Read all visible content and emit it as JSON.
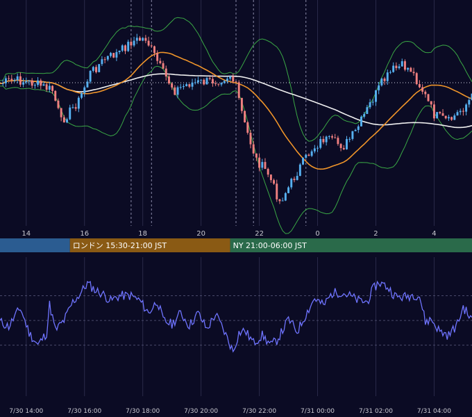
{
  "chart_data": [
    {
      "type": "candlestick",
      "x_ticks": [
        "14",
        "16",
        "18",
        "20",
        "22",
        "0",
        "2",
        "4"
      ],
      "x_tick_hours": [
        14,
        16,
        18,
        20,
        22,
        24,
        26,
        28
      ],
      "x_range_hours": [
        13.1,
        29.3
      ],
      "ohlc_hours_step": 0.1,
      "overlays": [
        "bollinger-bands",
        "moving-average-orange",
        "moving-average-white",
        "reference-dotted-line"
      ],
      "vertical_markers_hours": [
        17.6,
        18.3,
        21.2,
        21.8,
        23.6
      ],
      "colors": {
        "up": "#56b0f0",
        "down": "#f08080",
        "bands": "#3aa845",
        "ma_fast": "#f0952a",
        "ma_slow": "#f0f0f0",
        "grid": "#2a2a4a"
      }
    },
    {
      "type": "session-bar",
      "sessions": [
        {
          "label": "",
          "color": "#2b5c91",
          "start_hour": 13.1,
          "end_hour": 15.5
        },
        {
          "label": "ロンドン 15:30-21:00 JST",
          "color": "#8a5a14",
          "start_hour": 15.5,
          "end_hour": 21.0
        },
        {
          "label": "NY 21:00-06:00 JST",
          "color": "#2a6a4a",
          "start_hour": 21.0,
          "end_hour": 29.3
        }
      ]
    },
    {
      "type": "line",
      "series": [
        {
          "color": "#6f74ff",
          "anchors_x": [
            13.1,
            13.4,
            13.6,
            13.8,
            14.1,
            14.4,
            14.7,
            14.8,
            15.0,
            15.3,
            15.6,
            15.8,
            16.1,
            16.4,
            16.6,
            16.9,
            17.2,
            17.6,
            17.9,
            18.2,
            18.5,
            18.7,
            19.0,
            19.3,
            19.6,
            19.9,
            20.2,
            20.5,
            20.8,
            21.1,
            21.3,
            21.5,
            21.8,
            22.1,
            22.4,
            22.6,
            22.8,
            23.0,
            23.3,
            23.6,
            23.9,
            24.2,
            24.5,
            24.8,
            25.1,
            25.4,
            25.7,
            25.9,
            26.1,
            26.4,
            26.7,
            27.0,
            27.3,
            27.5,
            27.7,
            27.9,
            28.2,
            28.5,
            28.8,
            29.0,
            29.3
          ],
          "anchors_y": [
            49,
            45,
            53,
            60,
            40,
            30,
            40,
            63,
            42,
            50,
            65,
            70,
            80,
            74,
            72,
            66,
            70,
            70,
            66,
            56,
            66,
            50,
            47,
            56,
            46,
            56,
            43,
            55,
            41,
            25,
            40,
            42,
            32,
            38,
            30,
            34,
            42,
            51,
            41,
            55,
            68,
            62,
            72,
            73,
            70,
            66,
            65,
            75,
            81,
            77,
            69,
            69,
            71,
            70,
            49,
            51,
            41,
            38,
            47,
            61,
            50
          ]
        }
      ],
      "y_gridlines": [
        30,
        50,
        70
      ]
    }
  ],
  "bottom_axis": {
    "labels": [
      "7/30 14:00",
      "7/30 16:00",
      "7/30 18:00",
      "7/30 20:00",
      "7/30 22:00",
      "7/31 00:00",
      "7/31 02:00",
      "7/31 04:00"
    ]
  }
}
